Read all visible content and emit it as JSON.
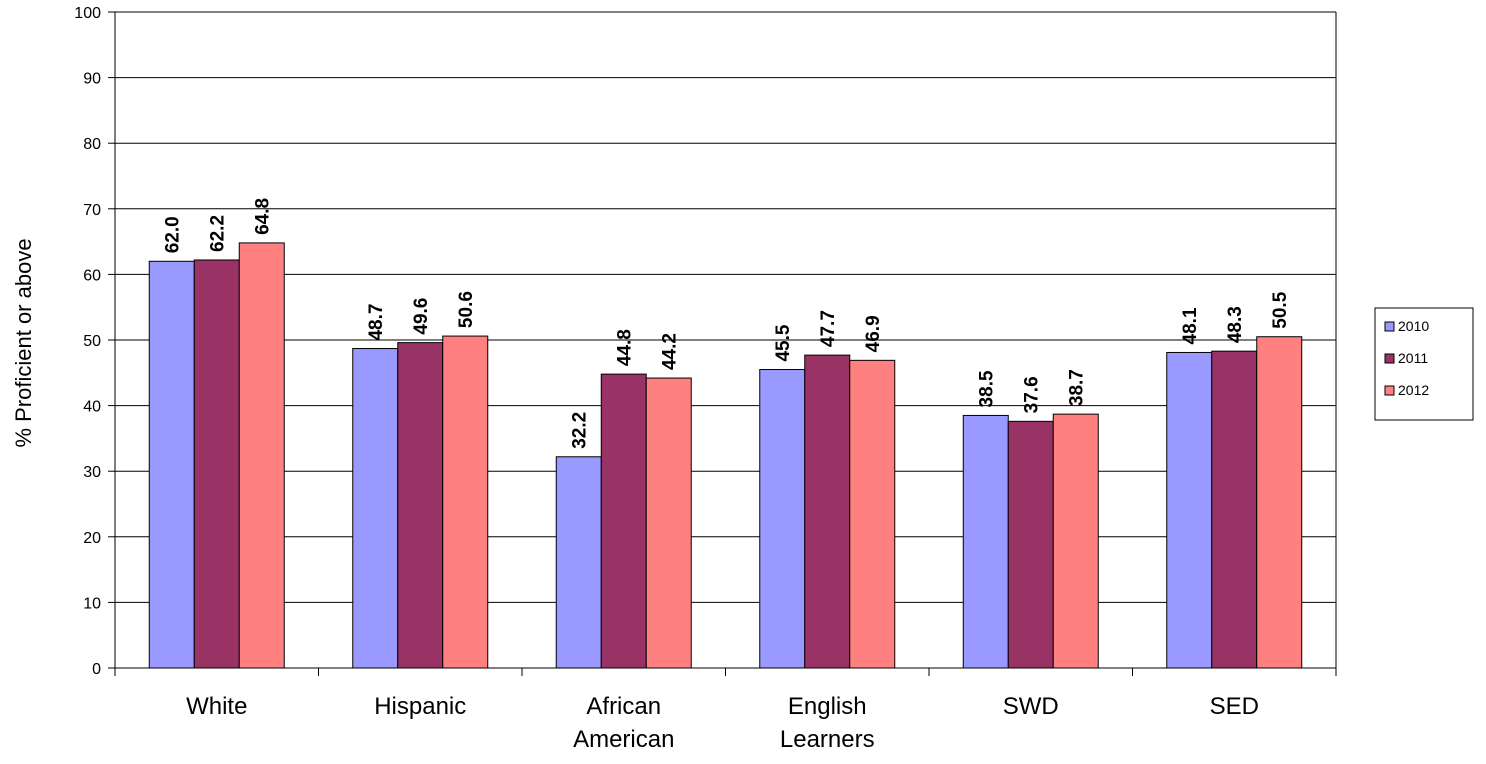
{
  "chart_data": {
    "type": "bar",
    "ylabel": "% Proficient or above",
    "xlabel": "",
    "ylim": [
      0,
      100
    ],
    "yticks": [
      0,
      10,
      20,
      30,
      40,
      50,
      60,
      70,
      80,
      90,
      100
    ],
    "grid": true,
    "legend_position": "right",
    "categories": [
      [
        "White"
      ],
      [
        "Hispanic"
      ],
      [
        "African",
        "American"
      ],
      [
        "English",
        "Learners"
      ],
      [
        "SWD"
      ],
      [
        "SED"
      ]
    ],
    "series": [
      {
        "name": "2010",
        "color": "#9999ff",
        "values": [
          62.0,
          48.7,
          32.2,
          45.5,
          38.5,
          48.1
        ],
        "labels": [
          "62.0",
          "48.7",
          "32.2",
          "45.5",
          "38.5",
          "48.1"
        ]
      },
      {
        "name": "2011",
        "color": "#993366",
        "values": [
          62.2,
          49.6,
          44.8,
          47.7,
          37.6,
          48.3
        ],
        "labels": [
          "62.2",
          "49.6",
          "44.8",
          "47.7",
          "37.6",
          "48.3"
        ]
      },
      {
        "name": "2012",
        "color": "#ff8080",
        "values": [
          64.8,
          50.6,
          44.2,
          46.9,
          38.7,
          50.5
        ],
        "labels": [
          "64.8",
          "50.6",
          "44.2",
          "46.9",
          "38.7",
          "50.5"
        ]
      }
    ]
  }
}
